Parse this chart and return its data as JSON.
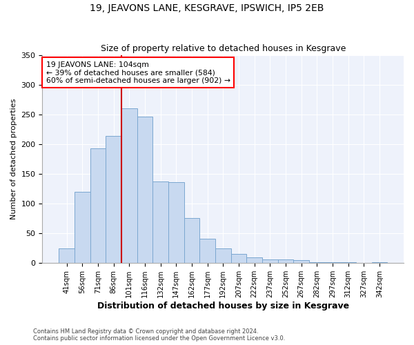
{
  "title": "19, JEAVONS LANE, KESGRAVE, IPSWICH, IP5 2EB",
  "subtitle": "Size of property relative to detached houses in Kesgrave",
  "xlabel": "Distribution of detached houses by size in Kesgrave",
  "ylabel": "Number of detached properties",
  "bar_labels": [
    "41sqm",
    "56sqm",
    "71sqm",
    "86sqm",
    "101sqm",
    "116sqm",
    "132sqm",
    "147sqm",
    "162sqm",
    "177sqm",
    "192sqm",
    "207sqm",
    "222sqm",
    "237sqm",
    "252sqm",
    "267sqm",
    "282sqm",
    "297sqm",
    "312sqm",
    "327sqm",
    "342sqm"
  ],
  "bar_values": [
    25,
    120,
    193,
    214,
    260,
    246,
    137,
    136,
    76,
    41,
    25,
    16,
    10,
    6,
    6,
    5,
    2,
    2,
    1,
    0,
    2
  ],
  "bar_color": "#c8d9f0",
  "bar_edge_color": "#7ba7d0",
  "vline_color": "#cc0000",
  "vline_index": 4,
  "annotation_title": "19 JEAVONS LANE: 104sqm",
  "annotation_line2": "← 39% of detached houses are smaller (584)",
  "annotation_line3": "60% of semi-detached houses are larger (902) →",
  "ylim": [
    0,
    350
  ],
  "yticks": [
    0,
    50,
    100,
    150,
    200,
    250,
    300,
    350
  ],
  "footer1": "Contains HM Land Registry data © Crown copyright and database right 2024.",
  "footer2": "Contains public sector information licensed under the Open Government Licence v3.0.",
  "bg_color": "#ffffff",
  "plot_bg_color": "#eef2fb",
  "grid_color": "#ffffff"
}
